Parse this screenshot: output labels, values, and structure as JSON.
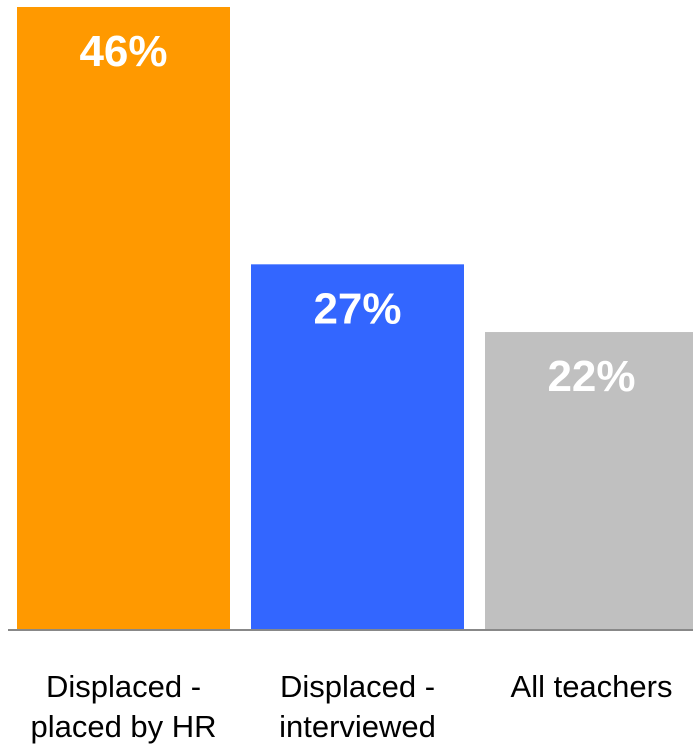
{
  "chart_data": {
    "type": "bar",
    "categories": [
      [
        "Displaced -",
        "placed by HR"
      ],
      [
        "Displaced -",
        "interviewed"
      ],
      [
        "All teachers"
      ]
    ],
    "values": [
      46,
      27,
      22
    ],
    "value_labels": [
      "46%",
      "27%",
      "22%"
    ],
    "colors": [
      "#FF9900",
      "#3366FF",
      "#C0C0C0"
    ],
    "title": "",
    "xlabel": "",
    "ylabel": "",
    "ylim": [
      0,
      46
    ],
    "grid": false,
    "legend": "none"
  }
}
